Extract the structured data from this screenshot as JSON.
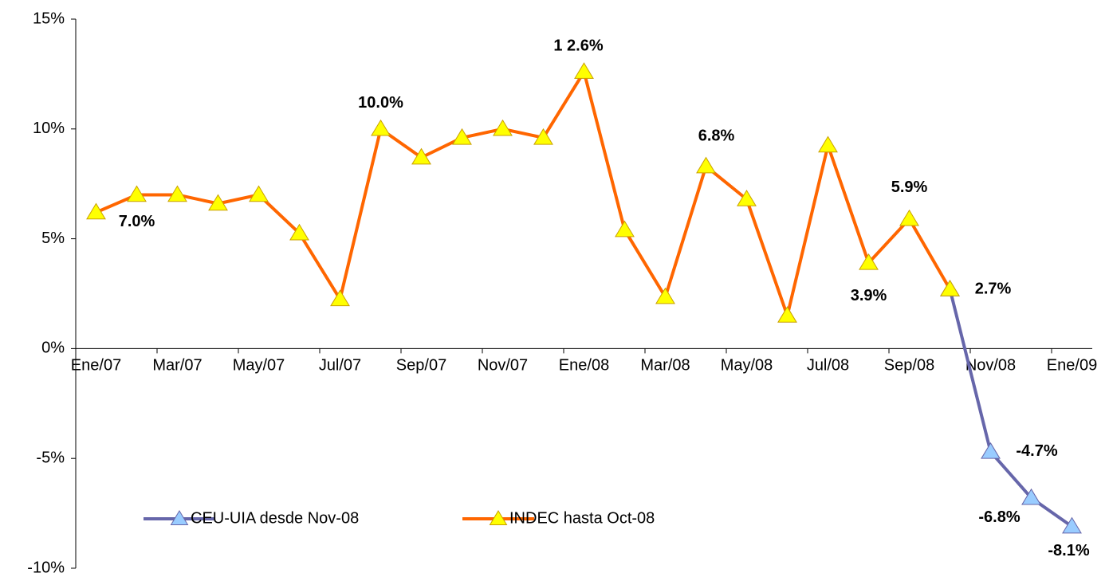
{
  "chart_data": {
    "type": "line",
    "categories": [
      "Ene/07",
      null,
      "Mar/07",
      null,
      "May/07",
      null,
      "Jul/07",
      null,
      "Sep/07",
      null,
      "Nov/07",
      null,
      "Ene/08",
      null,
      "Mar/08",
      null,
      "May/08",
      null,
      "Jul/08",
      null,
      "Sep/08",
      null,
      "Nov/08",
      null,
      "Ene/09"
    ],
    "series": [
      {
        "name": "CEU-UIA desde Nov-08",
        "color": "#6666aa",
        "marker_color": "#99ccff",
        "values": [
          null,
          null,
          null,
          null,
          null,
          null,
          null,
          null,
          null,
          null,
          null,
          null,
          null,
          null,
          null,
          null,
          null,
          null,
          null,
          null,
          null,
          2.7,
          -4.7,
          -6.8,
          -8.1
        ],
        "value_labels": [
          null,
          null,
          null,
          null,
          null,
          null,
          null,
          null,
          null,
          null,
          null,
          null,
          null,
          null,
          null,
          null,
          null,
          null,
          null,
          null,
          null,
          null,
          "-4.7%",
          "-6.8%",
          "-8.1%"
        ]
      },
      {
        "name": "INDEC hasta Oct-08",
        "color": "#ff6600",
        "marker_color": "#ffff00",
        "values": [
          6.2,
          7.0,
          7.0,
          6.6,
          7.0,
          5.25,
          2.25,
          10.0,
          8.7,
          9.6,
          10.0,
          9.6,
          12.6,
          5.4,
          2.35,
          8.3,
          6.8,
          1.5,
          9.25,
          3.9,
          5.9,
          2.7,
          null,
          null,
          null
        ],
        "value_labels": [
          null,
          "7.0%",
          null,
          null,
          null,
          null,
          null,
          "10.0%",
          null,
          null,
          null,
          null,
          "1 2.6%",
          null,
          null,
          null,
          "6.8%",
          null,
          null,
          "3.9%",
          "5.9%",
          "2.7%",
          null,
          null,
          null
        ]
      }
    ],
    "ylim": [
      -10,
      15
    ],
    "yticks": [
      {
        "value": -10,
        "label": "-10%"
      },
      {
        "value": -5,
        "label": "-5%"
      },
      {
        "value": 0,
        "label": "0%"
      },
      {
        "value": 5,
        "label": "5%"
      },
      {
        "value": 10,
        "label": "10%"
      },
      {
        "value": 15,
        "label": "15%"
      }
    ],
    "grid": false,
    "legend": "bottom-left"
  }
}
